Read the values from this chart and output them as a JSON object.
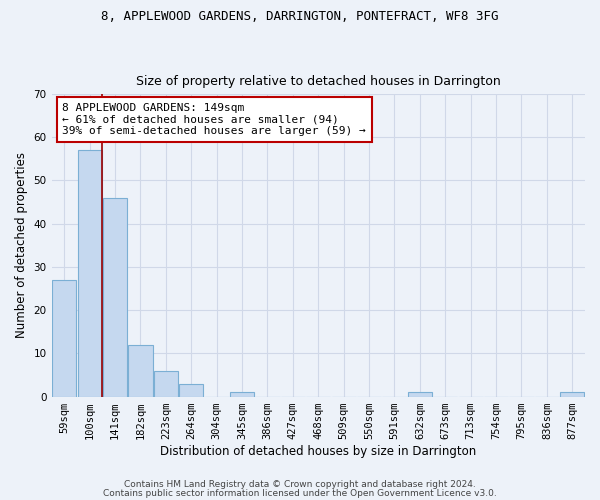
{
  "title1": "8, APPLEWOOD GARDENS, DARRINGTON, PONTEFRACT, WF8 3FG",
  "title2": "Size of property relative to detached houses in Darrington",
  "xlabel": "Distribution of detached houses by size in Darrington",
  "ylabel": "Number of detached properties",
  "categories": [
    "59sqm",
    "100sqm",
    "141sqm",
    "182sqm",
    "223sqm",
    "264sqm",
    "304sqm",
    "345sqm",
    "386sqm",
    "427sqm",
    "468sqm",
    "509sqm",
    "550sqm",
    "591sqm",
    "632sqm",
    "673sqm",
    "713sqm",
    "754sqm",
    "795sqm",
    "836sqm",
    "877sqm"
  ],
  "values": [
    27,
    57,
    46,
    12,
    6,
    3,
    0,
    1,
    0,
    0,
    0,
    0,
    0,
    0,
    1,
    0,
    0,
    0,
    0,
    0,
    1
  ],
  "bar_color": "#c5d8ef",
  "bar_edge_color": "#7bafd4",
  "vline_x": 1.5,
  "vline_color": "#9b0000",
  "annotation_text": "8 APPLEWOOD GARDENS: 149sqm\n← 61% of detached houses are smaller (94)\n39% of semi-detached houses are larger (59) →",
  "annotation_box_color": "#ffffff",
  "annotation_box_edge": "#bb0000",
  "ylim": [
    0,
    70
  ],
  "yticks": [
    0,
    10,
    20,
    30,
    40,
    50,
    60,
    70
  ],
  "footnote1": "Contains HM Land Registry data © Crown copyright and database right 2024.",
  "footnote2": "Contains public sector information licensed under the Open Government Licence v3.0.",
  "bg_color": "#edf2f9",
  "grid_color": "#d0d8e8",
  "title1_fontsize": 9,
  "title2_fontsize": 9,
  "tick_fontsize": 7.5,
  "label_fontsize": 8.5,
  "ann_fontsize": 8
}
